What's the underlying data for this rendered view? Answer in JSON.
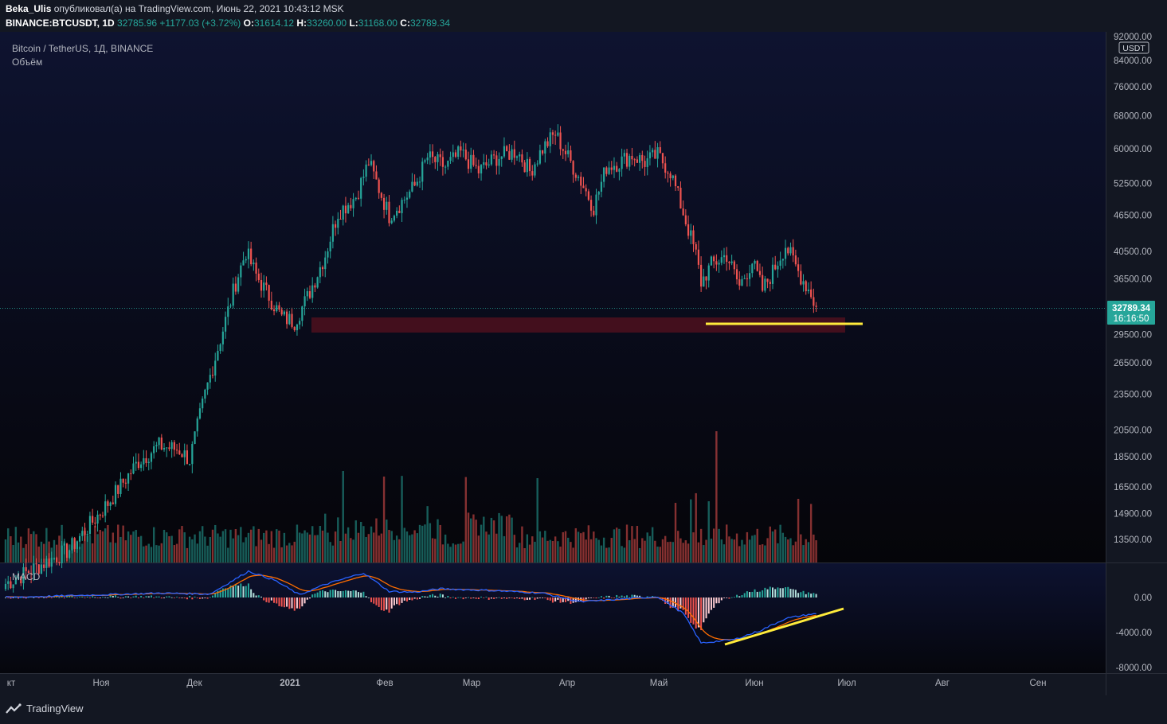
{
  "header": {
    "author": "Beka_Ulis",
    "published_text": "опубликовал(а) на TradingView.com, Июнь 22, 2021 10:43:12 MSK",
    "symbol": "BINANCE:BTCUSDT, 1D",
    "last": "32785.96",
    "change": "+1177.03 (+3.72%)",
    "o_label": "O:",
    "o": "31614.12",
    "h_label": "H:",
    "h": "33260.00",
    "l_label": "L:",
    "l": "31168.00",
    "c_label": "C:",
    "c": "32789.34"
  },
  "legend": {
    "title": "Bitcoin / TetherUS, 1Д, BINANCE",
    "volume": "Объём",
    "macd": "MACD"
  },
  "price_axis": {
    "currency": "USDT",
    "ticks": [
      "92000.00",
      "84000.00",
      "76000.00",
      "68000.00",
      "60000.00",
      "52500.00",
      "46500.00",
      "40500.00",
      "36500.00",
      "29500.00",
      "26500.00",
      "23500.00",
      "20500.00",
      "18500.00",
      "16500.00",
      "14900.00",
      "13500.00"
    ],
    "last_price": "32789.34",
    "countdown": "16:16:50"
  },
  "macd_axis": {
    "ticks": [
      "0.00",
      "-4000.00",
      "-8000.00"
    ]
  },
  "time_axis": {
    "labels": [
      "кт",
      "Ноя",
      "Дек",
      "2021",
      "Фев",
      "Мар",
      "Апр",
      "Май",
      "Июн",
      "Июл",
      "Авг",
      "Сен"
    ]
  },
  "colors": {
    "up": "#26a69a",
    "down": "#ef5350",
    "bg": "#131722",
    "zone": "#4a0f1e",
    "annotation": "#ffeb3b",
    "macd": "#2962ff",
    "signal": "#ff6d00"
  },
  "footer": {
    "brand": "TradingView"
  },
  "chart_data": {
    "type": "candlestick",
    "title": "Bitcoin / TetherUS, 1Д, BINANCE",
    "scale": "log",
    "ylim": [
      12900,
      92000
    ],
    "series": [
      {
        "name": "BTCUSDT",
        "anchors": [
          [
            0,
            11400
          ],
          [
            25,
            13000
          ],
          [
            40,
            15500
          ],
          [
            52,
            18200
          ],
          [
            60,
            19300
          ],
          [
            68,
            19000
          ],
          [
            72,
            18300
          ],
          [
            78,
            23500
          ],
          [
            84,
            29000
          ],
          [
            90,
            36000
          ],
          [
            94,
            40500
          ],
          [
            98,
            37000
          ],
          [
            108,
            31500
          ],
          [
            113,
            31000
          ],
          [
            118,
            34000
          ],
          [
            125,
            40000
          ],
          [
            130,
            47000
          ],
          [
            137,
            50000
          ],
          [
            142,
            57000
          ],
          [
            150,
            46500
          ],
          [
            155,
            49000
          ],
          [
            160,
            52000
          ],
          [
            165,
            58000
          ],
          [
            172,
            56000
          ],
          [
            178,
            59000
          ],
          [
            185,
            55000
          ],
          [
            192,
            58000
          ],
          [
            200,
            59500
          ],
          [
            205,
            55000
          ],
          [
            210,
            60000
          ],
          [
            215,
            63500
          ],
          [
            220,
            58000
          ],
          [
            225,
            53000
          ],
          [
            230,
            48000
          ],
          [
            235,
            56000
          ],
          [
            240,
            57000
          ],
          [
            245,
            58500
          ],
          [
            250,
            57000
          ],
          [
            255,
            58500
          ],
          [
            260,
            55000
          ],
          [
            265,
            47000
          ],
          [
            270,
            40000
          ],
          [
            272,
            36000
          ],
          [
            276,
            38500
          ],
          [
            282,
            40000
          ],
          [
            287,
            35500
          ],
          [
            292,
            39000
          ],
          [
            296,
            35000
          ],
          [
            300,
            37500
          ],
          [
            305,
            41500
          ],
          [
            310,
            37500
          ],
          [
            315,
            34500
          ],
          [
            317,
            32600
          ]
        ]
      },
      {
        "name": "Объём",
        "values": "daily volume bars"
      },
      {
        "name": "MACD",
        "anchors": [
          [
            0,
            0
          ],
          [
            60,
            500
          ],
          [
            80,
            400
          ],
          [
            95,
            3000
          ],
          [
            105,
            2000
          ],
          [
            115,
            300
          ],
          [
            125,
            1500
          ],
          [
            140,
            2800
          ],
          [
            150,
            700
          ],
          [
            160,
            600
          ],
          [
            170,
            1000
          ],
          [
            190,
            800
          ],
          [
            210,
            500
          ],
          [
            225,
            -500
          ],
          [
            240,
            -200
          ],
          [
            255,
            100
          ],
          [
            265,
            -1800
          ],
          [
            272,
            -5200
          ],
          [
            285,
            -4800
          ],
          [
            295,
            -3800
          ],
          [
            305,
            -2400
          ],
          [
            315,
            -1900
          ]
        ]
      }
    ],
    "annotations": [
      "support zone ~29800-31800",
      "support line",
      "MACD divergence line"
    ]
  }
}
